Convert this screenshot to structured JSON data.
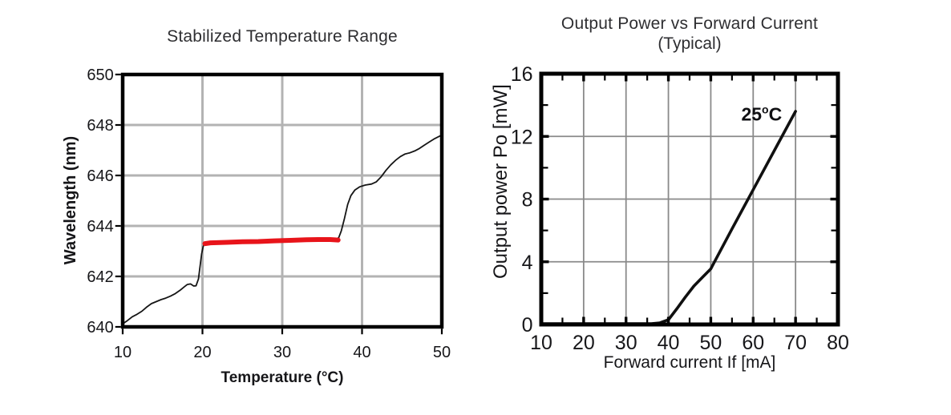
{
  "page": {
    "background": "#ffffff",
    "text_color": "#161619"
  },
  "chart_data": [
    {
      "type": "line",
      "id": "stabilized-temperature-range",
      "title": "Stabilized Temperature Range",
      "xlabel": "Temperature (°C)",
      "ylabel": "Wavelength (nm)",
      "xlim": [
        10,
        50
      ],
      "ylim": [
        640,
        650
      ],
      "x_ticks": [
        10,
        20,
        30,
        40,
        50
      ],
      "y_ticks": [
        640,
        642,
        644,
        646,
        648,
        650
      ],
      "x_gridlines": [
        20,
        30,
        40
      ],
      "y_gridlines": [
        642,
        644,
        646,
        648
      ],
      "grid_color": "#b3b3b3",
      "frame_color": "#000000",
      "legend": "none",
      "series": [
        {
          "name": "wavelength-vs-temperature",
          "color": "#151515",
          "width": 1.8,
          "points": [
            [
              10,
              640.12
            ],
            [
              10.6,
              640.25
            ],
            [
              11.2,
              640.4
            ],
            [
              11.8,
              640.5
            ],
            [
              12.4,
              640.62
            ],
            [
              13,
              640.78
            ],
            [
              13.6,
              640.92
            ],
            [
              14.2,
              641.0
            ],
            [
              14.8,
              641.08
            ],
            [
              15.4,
              641.14
            ],
            [
              16,
              641.22
            ],
            [
              16.6,
              641.32
            ],
            [
              17.2,
              641.45
            ],
            [
              17.7,
              641.58
            ],
            [
              18.1,
              641.68
            ],
            [
              18.5,
              641.7
            ],
            [
              18.9,
              641.62
            ],
            [
              19.2,
              641.63
            ],
            [
              19.5,
              641.9
            ],
            [
              19.7,
              642.4
            ],
            [
              19.9,
              642.9
            ],
            [
              20.1,
              643.2
            ],
            [
              20.4,
              643.32
            ],
            [
              23,
              643.36
            ],
            [
              27,
              643.39
            ],
            [
              31,
              643.43
            ],
            [
              35,
              643.46
            ],
            [
              36.8,
              643.45
            ],
            [
              37.1,
              643.55
            ],
            [
              37.4,
              643.8
            ],
            [
              37.8,
              644.3
            ],
            [
              38.2,
              644.85
            ],
            [
              38.6,
              645.2
            ],
            [
              39.1,
              645.42
            ],
            [
              39.7,
              645.55
            ],
            [
              40.4,
              645.62
            ],
            [
              41.2,
              645.66
            ],
            [
              41.8,
              645.75
            ],
            [
              42.4,
              645.95
            ],
            [
              43,
              646.2
            ],
            [
              43.6,
              646.42
            ],
            [
              44.2,
              646.6
            ],
            [
              44.8,
              646.75
            ],
            [
              45.4,
              646.85
            ],
            [
              46,
              646.9
            ],
            [
              46.6,
              646.97
            ],
            [
              47.2,
              647.07
            ],
            [
              47.8,
              647.2
            ],
            [
              48.4,
              647.32
            ],
            [
              49,
              647.44
            ],
            [
              49.5,
              647.52
            ],
            [
              50,
              647.6
            ]
          ]
        },
        {
          "name": "stabilized-region",
          "color": "#e8141a",
          "width": 6,
          "points": [
            [
              20.3,
              643.3
            ],
            [
              21,
              643.33
            ],
            [
              23,
              643.35
            ],
            [
              25,
              643.37
            ],
            [
              27,
              643.38
            ],
            [
              29,
              643.41
            ],
            [
              31,
              643.43
            ],
            [
              33,
              643.45
            ],
            [
              34.5,
              643.46
            ],
            [
              36,
              643.46
            ],
            [
              37,
              643.44
            ]
          ]
        }
      ]
    },
    {
      "type": "line",
      "id": "output-power-vs-forward-current",
      "title": "Output Power vs Forward Current",
      "subtitle": "(Typical)",
      "xlabel": "Forward current If [mA]",
      "ylabel": "Output power Po [mW]",
      "xlim": [
        10,
        80
      ],
      "ylim": [
        0,
        16
      ],
      "x_ticks": [
        10,
        20,
        30,
        40,
        50,
        60,
        70,
        80
      ],
      "y_ticks": [
        0,
        4,
        8,
        12,
        16
      ],
      "x_gridlines": [
        20,
        30,
        40,
        50,
        60,
        70
      ],
      "y_gridlines": [
        4,
        8,
        12
      ],
      "x_minor_ticks": [
        15,
        25,
        35,
        45,
        55,
        65,
        75
      ],
      "y_minor_ticks": [
        2,
        6,
        10,
        14
      ],
      "grid_color": "#8a8a8a",
      "frame_color": "#000000",
      "legend": "none",
      "annotation": {
        "value": "25",
        "sup": "o",
        "unit": "C",
        "x": 62,
        "y": 13.0
      },
      "series": [
        {
          "name": "po-vs-if-25c",
          "color": "#101010",
          "width": 3.6,
          "points": [
            [
              10,
              0.05
            ],
            [
              36,
              0.05
            ],
            [
              38,
              0.1
            ],
            [
              40,
              0.3
            ],
            [
              42,
              1.0
            ],
            [
              44,
              1.75
            ],
            [
              46,
              2.45
            ],
            [
              48,
              3.0
            ],
            [
              50,
              3.55
            ],
            [
              55,
              6.1
            ],
            [
              60,
              8.6
            ],
            [
              65,
              11.1
            ],
            [
              70,
              13.6
            ]
          ]
        }
      ]
    }
  ]
}
